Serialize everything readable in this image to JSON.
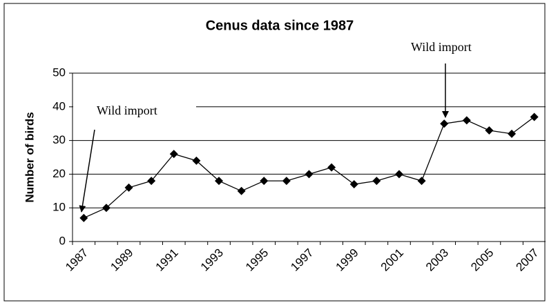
{
  "chart_data": {
    "type": "line",
    "title": "Cenus data since 1987",
    "y_label": "Number of birds",
    "categories": [
      "1987",
      null,
      "1989",
      null,
      "1991",
      null,
      "1993",
      null,
      "1995",
      null,
      "1997",
      null,
      "1999",
      null,
      "2001",
      null,
      "2003",
      null,
      "2005",
      null,
      "2007"
    ],
    "series": [
      {
        "name": "Number of birds",
        "color": "#000000",
        "values": [
          7,
          10,
          16,
          18,
          26,
          24,
          18,
          15,
          18,
          18,
          20,
          22,
          17,
          18,
          20,
          18,
          35,
          36,
          33,
          32,
          37
        ]
      }
    ],
    "ylim": [
      0,
      50
    ],
    "yticks": [
      0,
      10,
      20,
      30,
      40,
      50
    ],
    "grid": true,
    "legend": false,
    "annotations": [
      {
        "text": "Wild import"
      },
      {
        "text": "Wild import"
      }
    ]
  }
}
